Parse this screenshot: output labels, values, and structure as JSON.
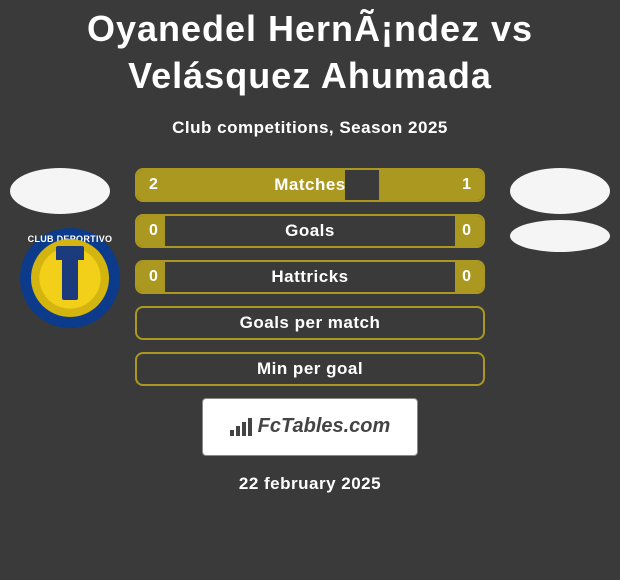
{
  "title": "Oyanedel HernÃ¡ndez vs Velásquez Ahumada",
  "subtitle": "Club competitions, Season 2025",
  "date": "22 february 2025",
  "footer_brand": "FcTables.com",
  "badge_text": "CLUB DEPORTIVO",
  "colors": {
    "bar_fill": "#aa9820",
    "bar_border": "#aa9820",
    "background": "#3a3a3a",
    "avatar": "#f5f5f5",
    "badge_outer": "#0b3b8a",
    "badge_inner": "#f2cf19",
    "text": "#ffffff"
  },
  "rows": [
    {
      "label": "Matches",
      "left": "2",
      "right": "1",
      "left_pct": 60,
      "right_pct": 30
    },
    {
      "label": "Goals",
      "left": "0",
      "right": "0",
      "left_pct": 8,
      "right_pct": 8
    },
    {
      "label": "Hattricks",
      "left": "0",
      "right": "0",
      "left_pct": 8,
      "right_pct": 8
    },
    {
      "label": "Goals per match",
      "left": "",
      "right": "",
      "left_pct": 0,
      "right_pct": 0
    },
    {
      "label": "Min per goal",
      "left": "",
      "right": "",
      "left_pct": 0,
      "right_pct": 0
    }
  ]
}
